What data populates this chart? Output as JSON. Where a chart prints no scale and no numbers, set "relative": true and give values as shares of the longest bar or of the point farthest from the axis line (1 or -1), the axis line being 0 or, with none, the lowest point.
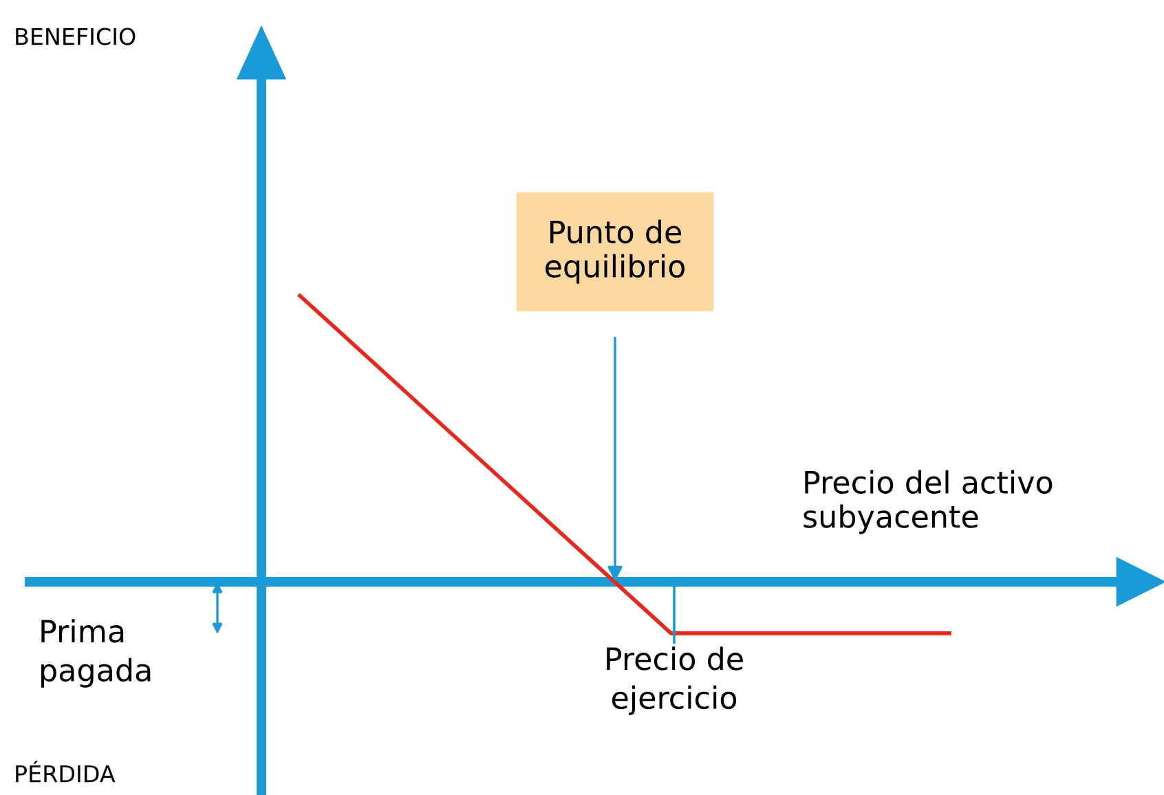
{
  "chart_data": {
    "type": "line",
    "relative": true,
    "xlabel": "Precio del activo subyacente",
    "categories": [
      null,
      null,
      null,
      null,
      null,
      null,
      null,
      null
    ],
    "series": [
      {
        "color": "#e8281e",
        "values": [
          1,
          0.705,
          0.41,
          0.115,
          -0.18,
          -0.18,
          -0.18,
          -0.18
        ]
      }
    ],
    "annotations": [
      "BENEFICIO",
      "PÉRDIDA",
      "Punto de equilibrio",
      "Precio de ejercicio",
      "Prima pagada"
    ],
    "ref_lines": [
      {
        "axis": "y",
        "value": 0,
        "color": "#1a9ad6"
      }
    ],
    "legend": false,
    "marker": "none",
    "line_style": "solid"
  }
}
